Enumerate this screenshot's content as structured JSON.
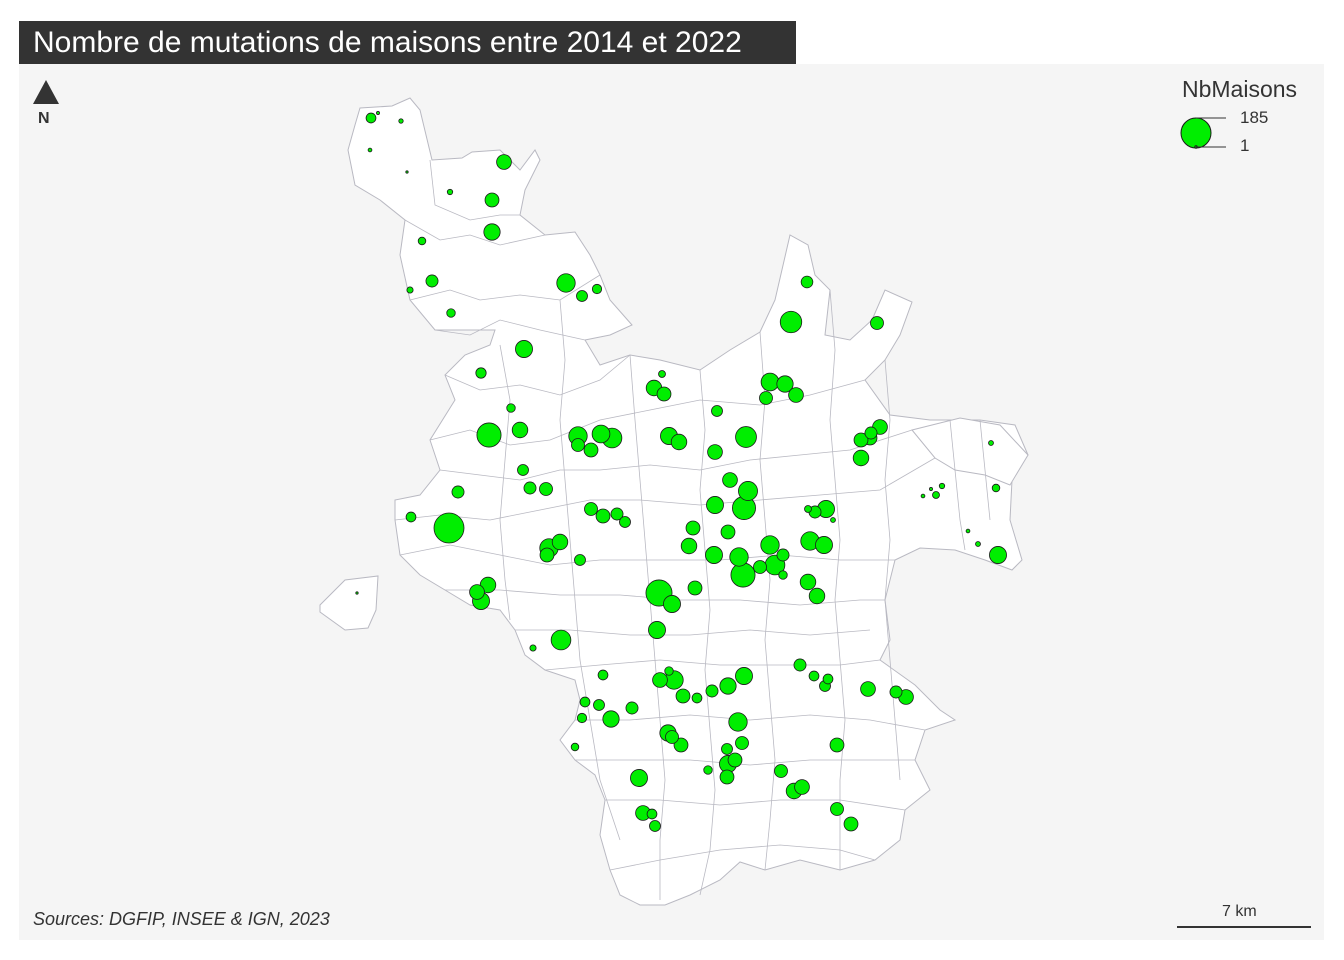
{
  "title": "Nombre de mutations de maisons entre 2014 et 2022",
  "north_label": "N",
  "legend": {
    "title": "NbMaisons",
    "max_label": "185",
    "min_label": "1",
    "max_value": 185,
    "min_value": 1
  },
  "scale_bar": {
    "label": "7 km",
    "km": 7
  },
  "source": "Sources: DGFIP, INSEE & IGN, 2023",
  "colors": {
    "background": "#f5f5f5",
    "title_bg": "#333333",
    "title_text": "#ffffff",
    "territory_fill": "#ffffff",
    "boundary": "#b9b9c2",
    "symbol_fill": "#00ee00",
    "symbol_stroke": "#1a1a1a"
  },
  "map_data": {
    "symbol": "proportional-circle",
    "variable": "NbMaisons",
    "communes": [
      {
        "v": 20
      },
      {
        "v": 4
      },
      {
        "v": 2
      },
      {
        "v": 3
      },
      {
        "v": 45
      },
      {
        "v": 40
      },
      {
        "v": 55
      },
      {
        "v": 1
      },
      {
        "v": 6
      },
      {
        "v": 12
      },
      {
        "v": 30
      },
      {
        "v": 8
      },
      {
        "v": 70
      },
      {
        "v": 25
      },
      {
        "v": 18
      },
      {
        "v": 15
      },
      {
        "v": 95
      },
      {
        "v": 35
      },
      {
        "v": 28
      },
      {
        "v": 60
      },
      {
        "v": 22
      },
      {
        "v": 120
      },
      {
        "v": 50
      },
      {
        "v": 15
      },
      {
        "v": 30
      },
      {
        "v": 185
      },
      {
        "v": 20
      },
      {
        "v": 10
      },
      {
        "v": 50
      },
      {
        "v": 40
      },
      {
        "v": 25
      },
      {
        "v": 65
      },
      {
        "v": 55
      },
      {
        "v": 35
      },
      {
        "v": 45
      },
      {
        "v": 70
      },
      {
        "v": 65
      },
      {
        "v": 40
      },
      {
        "v": 35
      },
      {
        "v": 80
      },
      {
        "v": 60
      },
      {
        "v": 50
      },
      {
        "v": 45
      },
      {
        "v": 90
      },
      {
        "v": 110
      },
      {
        "v": 75
      },
      {
        "v": 60
      },
      {
        "v": 45
      },
      {
        "v": 40
      },
      {
        "v": 50
      },
      {
        "v": 60
      },
      {
        "v": 70
      },
      {
        "v": 35
      },
      {
        "v": 30
      },
      {
        "v": 15
      },
      {
        "v": 70
      },
      {
        "v": 40
      },
      {
        "v": 10
      },
      {
        "v": 5
      },
      {
        "v": 60
      },
      {
        "v": 50
      },
      {
        "v": 40
      },
      {
        "v": 45
      },
      {
        "v": 140
      },
      {
        "v": 60
      },
      {
        "v": 40
      },
      {
        "v": 120
      },
      {
        "v": 80
      },
      {
        "v": 50
      },
      {
        "v": 50
      },
      {
        "v": 60
      },
      {
        "v": 45
      },
      {
        "v": 70
      },
      {
        "v": 40
      },
      {
        "v": 55
      },
      {
        "v": 60
      },
      {
        "v": 70
      },
      {
        "v": 35
      },
      {
        "v": 60
      },
      {
        "v": 40
      },
      {
        "v": 20
      },
      {
        "v": 80
      },
      {
        "v": 70
      },
      {
        "v": 50
      },
      {
        "v": 40
      },
      {
        "v": 50
      },
      {
        "v": 60
      },
      {
        "v": 45
      },
      {
        "v": 25
      },
      {
        "v": 55
      },
      {
        "v": 30
      },
      {
        "v": 20
      },
      {
        "v": 60
      },
      {
        "v": 45
      },
      {
        "v": 25
      },
      {
        "v": 35
      },
      {
        "v": 40
      },
      {
        "v": 55
      },
      {
        "v": 30
      },
      {
        "v": 20
      },
      {
        "v": 25
      },
      {
        "v": 20
      },
      {
        "v": 50
      },
      {
        "v": 45
      },
      {
        "v": 35
      },
      {
        "v": 40
      },
      {
        "v": 35
      },
      {
        "v": 40
      },
      {
        "v": 30
      },
      {
        "v": 45
      },
      {
        "v": 30
      },
      {
        "v": 60
      },
      {
        "v": 30
      },
      {
        "v": 40
      },
      {
        "v": 70
      },
      {
        "v": 25
      },
      {
        "v": 30
      },
      {
        "v": 35
      },
      {
        "v": 40
      },
      {
        "v": 30
      },
      {
        "v": 35
      },
      {
        "v": 25
      },
      {
        "v": 30
      },
      {
        "v": 20
      },
      {
        "v": 15
      },
      {
        "v": 25
      },
      {
        "v": 20
      },
      {
        "v": 15
      },
      {
        "v": 40
      },
      {
        "v": 8
      },
      {
        "v": 12
      },
      {
        "v": 18
      },
      {
        "v": 25
      },
      {
        "v": 45
      },
      {
        "v": 60
      },
      {
        "v": 5
      },
      {
        "v": 12
      },
      {
        "v": 3
      },
      {
        "v": 5
      },
      {
        "v": 6
      },
      {
        "v": 10
      },
      {
        "v": 3
      },
      {
        "v": 2
      },
      {
        "v": 1
      }
    ]
  }
}
